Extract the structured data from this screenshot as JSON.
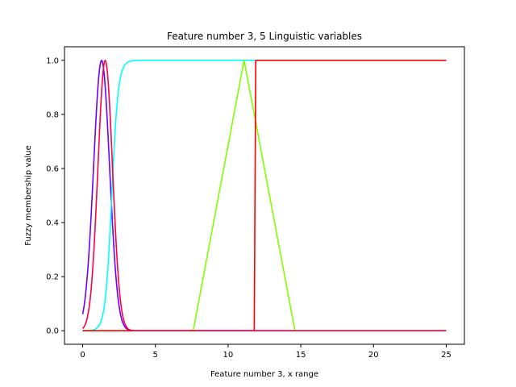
{
  "chart_data": {
    "type": "line",
    "title": "Feature number 3, 5 Linguistic variables",
    "xlabel": "Feature number 3, x range",
    "ylabel": "Fuzzy membership value",
    "xlim": [
      -1.25,
      26.25
    ],
    "ylim": [
      -0.05,
      1.05
    ],
    "xticks": [
      0,
      5,
      10,
      15,
      20,
      25
    ],
    "yticks": [
      0.0,
      0.2,
      0.4,
      0.6,
      0.8,
      1.0
    ],
    "xtick_labels": [
      "0",
      "5",
      "10",
      "15",
      "20",
      "25"
    ],
    "ytick_labels": [
      "0.0",
      "0.2",
      "0.4",
      "0.6",
      "0.8",
      "1.0"
    ],
    "grid": false,
    "series": [
      {
        "color": "#6a00ff",
        "kind": "gaussian",
        "mean": 1.3,
        "sigma": 0.55,
        "x_range": [
          0,
          25
        ]
      },
      {
        "color": "#00ffff",
        "kind": "sigmoid",
        "center": 2.0,
        "slope": 4.5,
        "x_range": [
          0,
          25
        ]
      },
      {
        "color": "#80ff00",
        "kind": "triangle",
        "x": [
          0,
          7.6,
          11.1,
          14.6,
          25
        ],
        "y": [
          0,
          0,
          1.0,
          0,
          0
        ]
      },
      {
        "color": "#ff0000",
        "kind": "step",
        "x": [
          0,
          11.8,
          11.9,
          25
        ],
        "y": [
          0,
          0,
          1.0,
          1.0
        ]
      },
      {
        "color": "#ff0040",
        "kind": "gaussian",
        "mean": 1.55,
        "sigma": 0.5,
        "x_range": [
          0,
          25
        ]
      }
    ]
  }
}
